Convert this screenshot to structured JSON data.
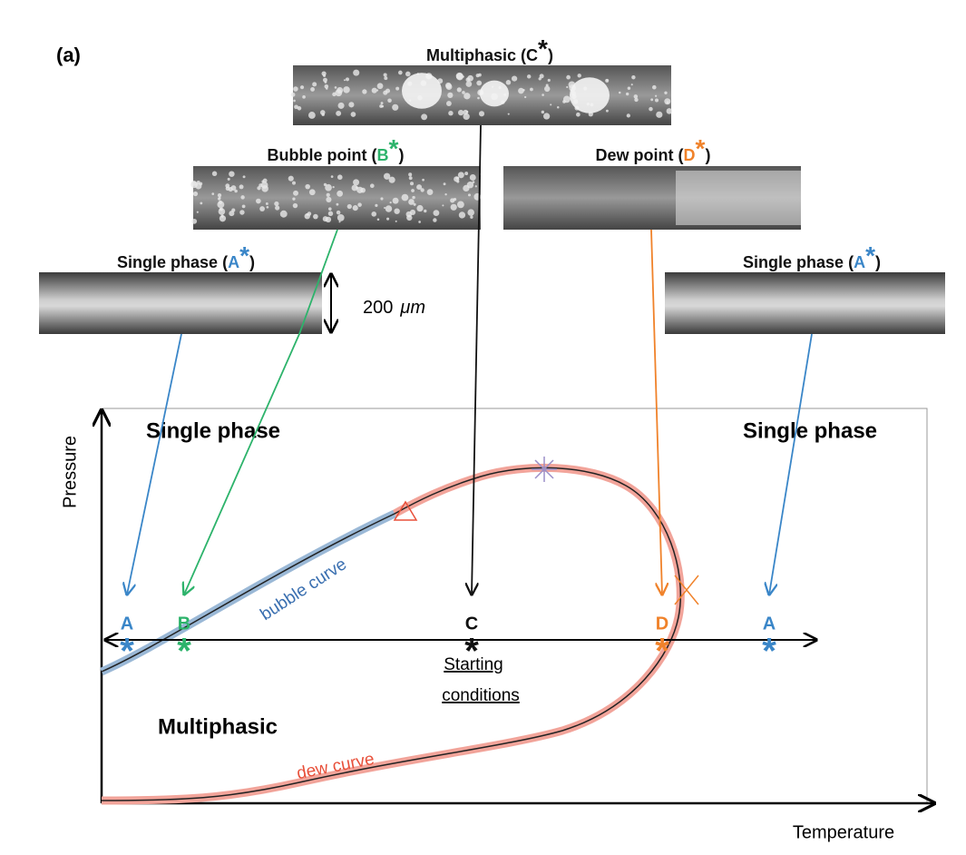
{
  "panel_label": "(a)",
  "images": [
    {
      "prefix": "Multiphasic  (",
      "letter": "C",
      "star": "*",
      "suffix": ")",
      "color": "#111111"
    },
    {
      "prefix": "Bubble point (",
      "letter": "B",
      "star": "*",
      "suffix": ")",
      "color": "#2db36b"
    },
    {
      "prefix": "Dew point      (",
      "letter": "D",
      "star": "*",
      "suffix": ")",
      "color": "#f0822a"
    },
    {
      "prefix": "Single phase  (",
      "letter": "A",
      "star": "*",
      "suffix": ")",
      "color": "#3a86c8"
    },
    {
      "prefix": "Single phase  (",
      "letter": "A",
      "star": "*",
      "suffix": ")",
      "color": "#3a86c8"
    }
  ],
  "scale_bar": {
    "number": "200",
    "unit": "μm"
  },
  "axes": {
    "y_label": "Pressure",
    "x_label": "Temperature"
  },
  "regions": [
    "Single phase",
    "Single phase",
    "Multiphasic"
  ],
  "curves": [
    "bubble curve",
    "dew curve"
  ],
  "points": [
    {
      "letter": "A",
      "star": "*",
      "color": "#3a86c8"
    },
    {
      "letter": "B",
      "star": "*",
      "color": "#2db36b"
    },
    {
      "letter": "C",
      "star": "*",
      "color": "#111111"
    },
    {
      "letter": "D",
      "star": "*",
      "color": "#f0822a"
    },
    {
      "letter": "A",
      "star": "*",
      "color": "#3a86c8"
    }
  ],
  "start_note": [
    "Starting",
    "conditions"
  ]
}
